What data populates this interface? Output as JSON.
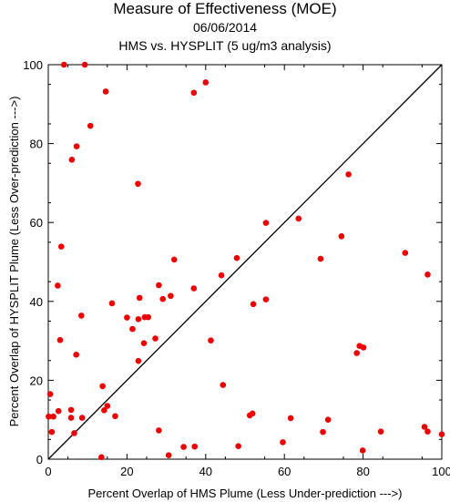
{
  "chart_data": {
    "type": "scatter",
    "title": "Measure of Effectiveness (MOE)",
    "subtitle": "06/06/2014",
    "subtitle2": "HMS vs. HYSPLIT  (5 ug/m3 analysis)",
    "xlabel": "Percent Overlap of HMS Plume (Less Under-prediction --->)",
    "ylabel": "Percent Overlap of HYSPLIT Plume (Less Over-prediction --->)",
    "xlim": [
      0,
      100
    ],
    "ylim": [
      0,
      100
    ],
    "xticks": [
      "0",
      "20",
      "40",
      "60",
      "80",
      "100"
    ],
    "yticks": [
      "0",
      "20",
      "40",
      "60",
      "80",
      "100"
    ],
    "grid": false,
    "diagonal_line": true,
    "point_color": "#ee0000",
    "points": [
      [
        4,
        100
      ],
      [
        9.3,
        100
      ],
      [
        14.6,
        93.2
      ],
      [
        37,
        92.9
      ],
      [
        40,
        95.5
      ],
      [
        10.7,
        84.5
      ],
      [
        7.2,
        79.3
      ],
      [
        6,
        75.9
      ],
      [
        22.8,
        69.8
      ],
      [
        76.3,
        72.2
      ],
      [
        55.3,
        59.9
      ],
      [
        63.6,
        61
      ],
      [
        74.5,
        56.5
      ],
      [
        90.7,
        52.3
      ],
      [
        3.3,
        53.9
      ],
      [
        2.4,
        44
      ],
      [
        32,
        50.6
      ],
      [
        47.9,
        51
      ],
      [
        69.2,
        50.8
      ],
      [
        96.4,
        46.8
      ],
      [
        44,
        46.6
      ],
      [
        37,
        43.3
      ],
      [
        28.1,
        44.1
      ],
      [
        23.2,
        40.9
      ],
      [
        29.1,
        40.6
      ],
      [
        31.1,
        41.4
      ],
      [
        16.2,
        39.5
      ],
      [
        52.1,
        39.3
      ],
      [
        55.3,
        40.5
      ],
      [
        8.4,
        36.4
      ],
      [
        20,
        35.9
      ],
      [
        22.9,
        35.5
      ],
      [
        24.5,
        36
      ],
      [
        25.4,
        36
      ],
      [
        21.4,
        33
      ],
      [
        27.2,
        30.6
      ],
      [
        41.3,
        30.1
      ],
      [
        3,
        30.2
      ],
      [
        7.1,
        26.5
      ],
      [
        22.9,
        24.9
      ],
      [
        24.3,
        29.4
      ],
      [
        78.4,
        26.9
      ],
      [
        79.1,
        28.7
      ],
      [
        80.1,
        28.3
      ],
      [
        13.8,
        18.5
      ],
      [
        17,
        10.9
      ],
      [
        44.4,
        18.8
      ],
      [
        0.5,
        16.5
      ],
      [
        0.1,
        10.8
      ],
      [
        1.3,
        10.8
      ],
      [
        2.6,
        12.2
      ],
      [
        5.8,
        12.5
      ],
      [
        5.8,
        10.5
      ],
      [
        8.6,
        10.5
      ],
      [
        14.2,
        12.4
      ],
      [
        15,
        13.5
      ],
      [
        0.9,
        6.9
      ],
      [
        6.6,
        6.6
      ],
      [
        51.2,
        11.1
      ],
      [
        51.9,
        11.6
      ],
      [
        61.6,
        10.4
      ],
      [
        71.1,
        10
      ],
      [
        28.1,
        7.3
      ],
      [
        69.8,
        6.9
      ],
      [
        84.5,
        7
      ],
      [
        95.6,
        8.2
      ],
      [
        96.4,
        7
      ],
      [
        13.5,
        0.5
      ],
      [
        30.6,
        1
      ],
      [
        34.4,
        3.1
      ],
      [
        37.2,
        3.2
      ],
      [
        48.3,
        3.3
      ],
      [
        59.6,
        4.3
      ],
      [
        79.9,
        2.2
      ],
      [
        100,
        6.3
      ]
    ]
  }
}
